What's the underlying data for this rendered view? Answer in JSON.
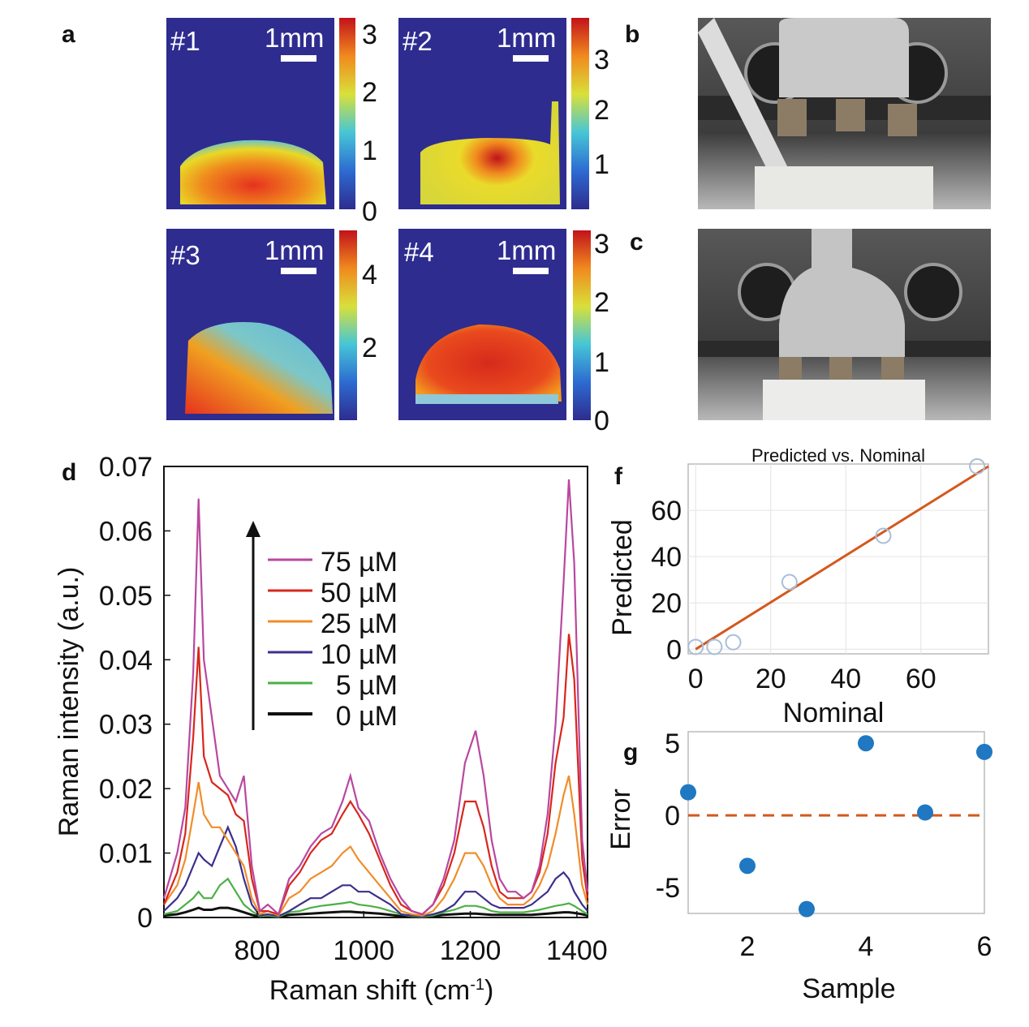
{
  "panel_labels": {
    "a": "a",
    "b": "b",
    "c": "c",
    "d": "d",
    "f": "f",
    "g": "g"
  },
  "colors": {
    "bg_map": "#2e2c8f",
    "map_hi": "#e6321e",
    "map_mid": "#f2d11a",
    "map_lo": "#46b6d6",
    "c75": "#b9479f",
    "c50": "#d9261c",
    "c25": "#f08d2a",
    "c10": "#3b2f8c",
    "c5": "#4caf46",
    "c0": "#111111",
    "fit": "#d4581c",
    "point": "#1f78c1",
    "photo_bg": "#4a4a4a",
    "metal": "#bdbdbd"
  },
  "heatmaps": [
    {
      "id": "#1",
      "scale": "1mm",
      "ticks": [
        "3",
        "2",
        "1",
        "0"
      ]
    },
    {
      "id": "#2",
      "scale": "1mm",
      "ticks": [
        "3",
        "2",
        "1"
      ]
    },
    {
      "id": "#3",
      "scale": "1mm",
      "ticks": [
        "4",
        "2"
      ]
    },
    {
      "id": "#4",
      "scale": "1mm",
      "ticks": [
        "3",
        "2",
        "1",
        "0"
      ]
    }
  ],
  "chart_data": [
    {
      "panel": "d",
      "type": "line",
      "title": "",
      "xlabel": "Raman shift (cm",
      "xlabel_sup": "-1",
      "xlabel_end": ")",
      "ylabel": "Raman intensity (a.u.)",
      "xlim": [
        625,
        1420
      ],
      "ylim": [
        0,
        0.07
      ],
      "x_ticks": [
        800,
        1000,
        1200,
        1400
      ],
      "y_ticks": [
        "0",
        "0.01",
        "0.02",
        "0.03",
        "0.04",
        "0.05",
        "0.06",
        "0.07"
      ],
      "x": [
        625,
        650,
        665,
        680,
        690,
        700,
        715,
        730,
        745,
        760,
        775,
        790,
        805,
        820,
        840,
        860,
        880,
        900,
        920,
        940,
        960,
        975,
        990,
        1010,
        1030,
        1050,
        1070,
        1090,
        1110,
        1130,
        1150,
        1170,
        1190,
        1210,
        1225,
        1240,
        1255,
        1270,
        1285,
        1300,
        1315,
        1330,
        1345,
        1360,
        1375,
        1385,
        1395,
        1410,
        1420
      ],
      "series": [
        {
          "name": "75",
          "unit": "µM",
          "color_key": "c75",
          "values": [
            0.003,
            0.01,
            0.017,
            0.038,
            0.065,
            0.04,
            0.031,
            0.022,
            0.02,
            0.018,
            0.022,
            0.008,
            0.001,
            0.002,
            0.0005,
            0.006,
            0.008,
            0.011,
            0.013,
            0.014,
            0.018,
            0.022,
            0.017,
            0.015,
            0.01,
            0.006,
            0.003,
            0.001,
            0.0005,
            0.002,
            0.006,
            0.012,
            0.024,
            0.029,
            0.022,
            0.012,
            0.006,
            0.004,
            0.004,
            0.003,
            0.004,
            0.008,
            0.016,
            0.03,
            0.052,
            0.068,
            0.055,
            0.012,
            0.004
          ]
        },
        {
          "name": "50",
          "unit": "µM",
          "color_key": "c50",
          "values": [
            0.002,
            0.007,
            0.013,
            0.028,
            0.042,
            0.025,
            0.021,
            0.02,
            0.019,
            0.016,
            0.015,
            0.006,
            0.001,
            0.001,
            0.0005,
            0.005,
            0.007,
            0.01,
            0.012,
            0.013,
            0.016,
            0.018,
            0.016,
            0.013,
            0.009,
            0.005,
            0.002,
            0.001,
            0.0005,
            0.002,
            0.005,
            0.01,
            0.018,
            0.018,
            0.014,
            0.008,
            0.004,
            0.003,
            0.003,
            0.003,
            0.004,
            0.007,
            0.013,
            0.024,
            0.031,
            0.044,
            0.037,
            0.009,
            0.003
          ]
        },
        {
          "name": "25",
          "unit": "µM",
          "color_key": "c25",
          "values": [
            0.002,
            0.005,
            0.009,
            0.016,
            0.021,
            0.016,
            0.014,
            0.014,
            0.012,
            0.01,
            0.008,
            0.003,
            0.0005,
            0.001,
            0.0003,
            0.003,
            0.004,
            0.006,
            0.007,
            0.008,
            0.01,
            0.011,
            0.009,
            0.007,
            0.005,
            0.003,
            0.001,
            0.0005,
            0.0003,
            0.001,
            0.003,
            0.006,
            0.01,
            0.01,
            0.008,
            0.005,
            0.003,
            0.002,
            0.002,
            0.002,
            0.003,
            0.005,
            0.008,
            0.013,
            0.019,
            0.022,
            0.016,
            0.005,
            0.002
          ]
        },
        {
          "name": "10",
          "unit": "µM",
          "color_key": "c10",
          "values": [
            0.001,
            0.003,
            0.005,
            0.008,
            0.01,
            0.009,
            0.008,
            0.011,
            0.014,
            0.011,
            0.006,
            0.002,
            0.0003,
            0.0005,
            0.0002,
            0.001,
            0.002,
            0.003,
            0.003,
            0.004,
            0.005,
            0.005,
            0.004,
            0.004,
            0.003,
            0.002,
            0.0005,
            0.0003,
            0.0002,
            0.0005,
            0.001,
            0.002,
            0.004,
            0.004,
            0.003,
            0.002,
            0.0015,
            0.0015,
            0.0015,
            0.0015,
            0.002,
            0.003,
            0.004,
            0.006,
            0.007,
            0.006,
            0.004,
            0.002,
            0.001
          ]
        },
        {
          "name": "5",
          "unit": "µM",
          "color_key": "c5",
          "values": [
            0.0005,
            0.001,
            0.002,
            0.003,
            0.004,
            0.003,
            0.003,
            0.005,
            0.006,
            0.004,
            0.002,
            0.001,
            0.0002,
            0.0003,
            0.0001,
            0.0008,
            0.001,
            0.0015,
            0.0018,
            0.002,
            0.0022,
            0.0024,
            0.002,
            0.0018,
            0.0015,
            0.001,
            0.0005,
            0.0002,
            0.0001,
            0.0003,
            0.0008,
            0.0012,
            0.0018,
            0.0018,
            0.0015,
            0.001,
            0.0008,
            0.0008,
            0.0008,
            0.0008,
            0.001,
            0.0012,
            0.0015,
            0.0018,
            0.002,
            0.0022,
            0.0018,
            0.001,
            0.0005
          ]
        },
        {
          "name": "0",
          "unit": "µM",
          "color_key": "c0",
          "values": [
            0.0003,
            0.0005,
            0.0008,
            0.0012,
            0.0015,
            0.0012,
            0.0012,
            0.0015,
            0.0015,
            0.0012,
            0.0008,
            0.0004,
            0.0001,
            0.0002,
            0.0001,
            0.0004,
            0.0005,
            0.0006,
            0.0007,
            0.0008,
            0.0009,
            0.0009,
            0.0008,
            0.0007,
            0.0006,
            0.0004,
            0.0002,
            0.0001,
            0.0001,
            0.0002,
            0.0004,
            0.0005,
            0.0006,
            0.0006,
            0.0005,
            0.0004,
            0.0004,
            0.0004,
            0.0004,
            0.0004,
            0.0004,
            0.0005,
            0.0006,
            0.0007,
            0.0008,
            0.0008,
            0.0007,
            0.0005,
            0.0003
          ]
        }
      ]
    },
    {
      "panel": "f",
      "type": "scatter",
      "title": "Predicted vs. Nominal",
      "xlabel": "Nominal",
      "ylabel": "Predicted",
      "xlim": [
        -2,
        78
      ],
      "ylim": [
        -2,
        80
      ],
      "x_ticks": [
        "0",
        "20",
        "40",
        "60"
      ],
      "y_ticks": [
        "0",
        "20",
        "40",
        "60"
      ],
      "points": [
        {
          "x": 0,
          "y": 1
        },
        {
          "x": 5,
          "y": 1
        },
        {
          "x": 10,
          "y": 3
        },
        {
          "x": 25,
          "y": 29
        },
        {
          "x": 50,
          "y": 49
        },
        {
          "x": 75,
          "y": 79
        }
      ],
      "fit": {
        "x": [
          0,
          78
        ],
        "y": [
          0,
          79
        ]
      }
    },
    {
      "panel": "g",
      "type": "scatter",
      "title": "",
      "xlabel": "Sample",
      "ylabel": "Error",
      "xlim": [
        1,
        6
      ],
      "ylim": [
        -6.8,
        5.8
      ],
      "x_ticks": [
        "2",
        "4",
        "6"
      ],
      "y_ticks": [
        "5",
        "0",
        "-5"
      ],
      "points": [
        {
          "x": 1,
          "y": 1.6
        },
        {
          "x": 2,
          "y": -3.5
        },
        {
          "x": 3,
          "y": -6.5
        },
        {
          "x": 4,
          "y": 5.0
        },
        {
          "x": 5,
          "y": 0.2
        },
        {
          "x": 6,
          "y": 4.4
        }
      ],
      "zero_line": 0
    }
  ]
}
